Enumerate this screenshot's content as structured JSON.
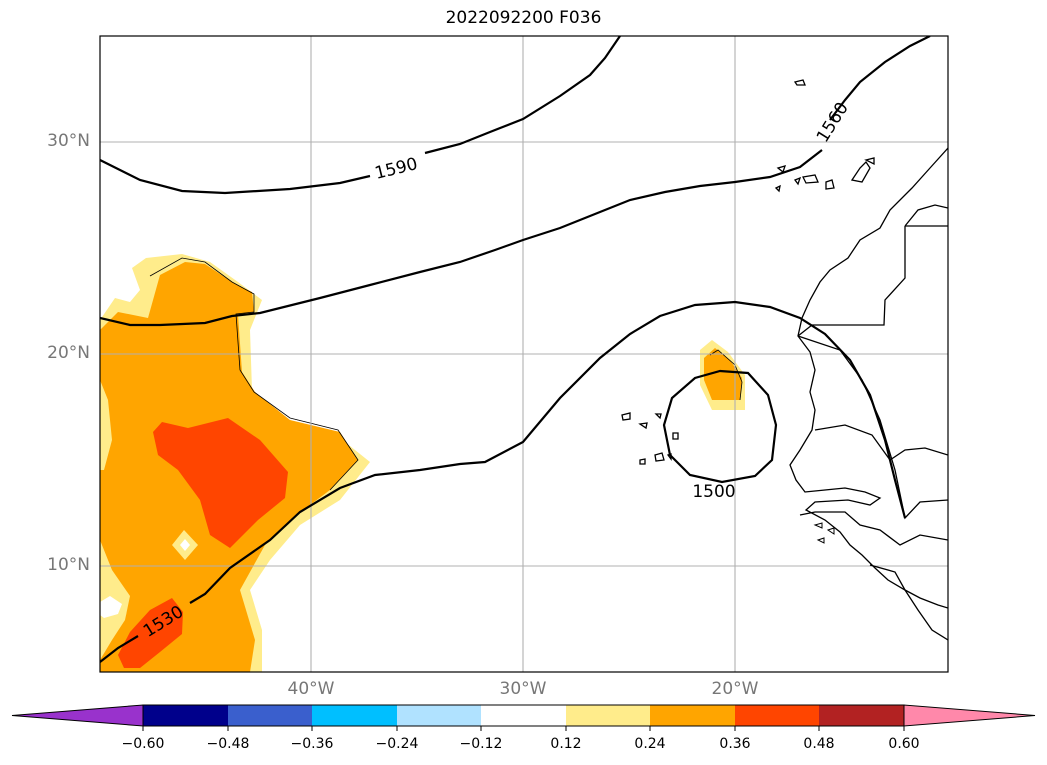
{
  "title": "2022092200 F036",
  "map": {
    "lat_labels": [
      "30°N",
      "20°N",
      "10°N"
    ],
    "lon_labels": [
      "40°W",
      "30°W",
      "20°W"
    ],
    "contour_labels": [
      "1590",
      "1560",
      "1500",
      "1530"
    ]
  },
  "colorbar": {
    "ticks": [
      "−0.60",
      "−0.48",
      "−0.36",
      "−0.24",
      "−0.12",
      "0.12",
      "0.24",
      "0.36",
      "0.48",
      "0.60"
    ],
    "colors": [
      "#9932cc",
      "#00008b",
      "#3a5fcd",
      "#00bfff",
      "#b0e2ff",
      "#ffffff",
      "#ffec8b",
      "#ffa500",
      "#ff4500",
      "#b22222",
      "#ff88aa"
    ]
  }
}
